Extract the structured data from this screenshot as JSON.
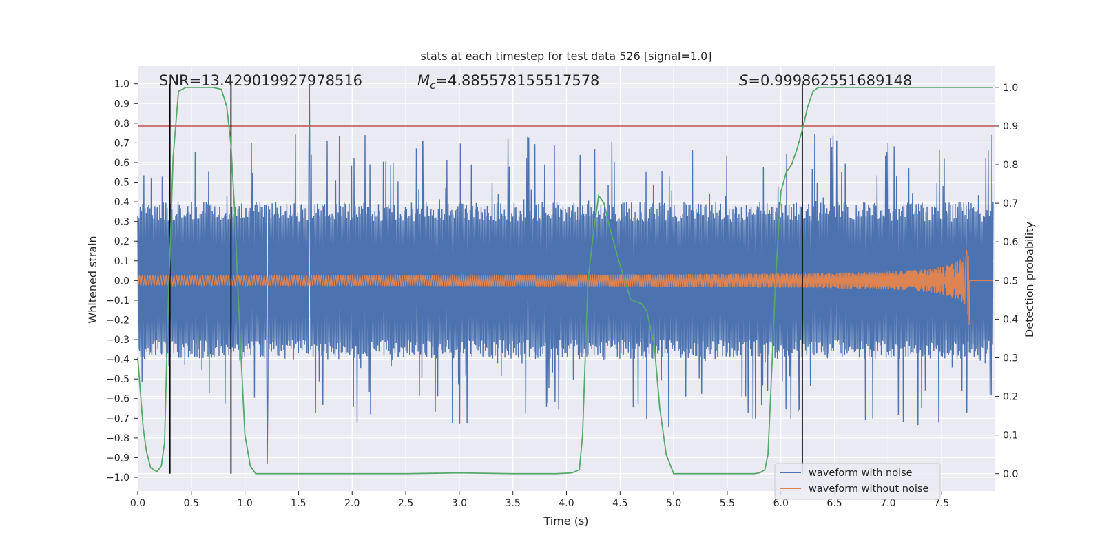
{
  "chart_data": {
    "type": "line",
    "title": "stats at each timestep for test data 526 [signal=1.0]",
    "xlabel": "Time (s)",
    "ylabel_left": "Whitened strain",
    "ylabel_right": "Detection probability",
    "xlim": [
      0.0,
      8.0
    ],
    "ylim_left": [
      -1.07,
      1.09
    ],
    "ylim_right": [
      -0.045,
      1.055
    ],
    "x_ticks": [
      "0.0",
      "0.5",
      "1.0",
      "1.5",
      "2.0",
      "2.5",
      "3.0",
      "3.5",
      "4.0",
      "4.5",
      "5.0",
      "5.5",
      "6.0",
      "6.5",
      "7.0",
      "7.5"
    ],
    "y_left_ticks": [
      "1.0",
      "0.9",
      "0.8",
      "0.7",
      "0.6",
      "0.5",
      "0.4",
      "0.3",
      "0.2",
      "0.1",
      "0.0",
      "−0.1",
      "−0.2",
      "−0.3",
      "−0.4",
      "−0.5",
      "−0.6",
      "−0.7",
      "−0.8",
      "−0.9",
      "−1.0"
    ],
    "y_right_ticks": [
      "1.0",
      "0.9",
      "0.8",
      "0.7",
      "0.6",
      "0.5",
      "0.4",
      "0.3",
      "0.2",
      "0.1",
      "0.0"
    ],
    "grid": true,
    "legend_position": "bottom-right",
    "annotations": {
      "snr": "SNR=13.429019927978516",
      "mc_symbol": "M",
      "mc_sub": "c",
      "mc_value": "=4.885578155517578",
      "s_symbol": "S",
      "s_value": "=0.999862551689148"
    },
    "threshold_right": 0.9,
    "vertical_lines_x": [
      0.3,
      0.87,
      6.2
    ],
    "series": [
      {
        "name": "waveform with noise",
        "color": "#4c72b0",
        "envelope": {
          "x_start": 0.0,
          "x_end": 7.98,
          "typical_amplitude": 0.4,
          "max_peak": 1.0,
          "max_peak_x": 1.6,
          "min_peak": -0.93
        }
      },
      {
        "name": "waveform without noise",
        "color": "#dd8452",
        "chirp": {
          "x_start": 0.0,
          "x_merger": 7.76,
          "x_end": 7.98,
          "amp_start": 0.025,
          "amp_at_7": 0.07,
          "amp_peak": 0.3
        }
      },
      {
        "name": "detection probability",
        "color": "#55a868",
        "axis": "right",
        "x": [
          0.0,
          0.05,
          0.08,
          0.12,
          0.18,
          0.22,
          0.25,
          0.28,
          0.33,
          0.38,
          0.45,
          0.55,
          0.7,
          0.78,
          0.83,
          0.87,
          0.9,
          0.95,
          1.0,
          1.05,
          1.1,
          1.3,
          2.0,
          2.5,
          3.0,
          3.5,
          3.9,
          4.05,
          4.12,
          4.15,
          4.2,
          4.25,
          4.3,
          4.35,
          4.4,
          4.5,
          4.6,
          4.7,
          4.75,
          4.82,
          4.87,
          4.93,
          5.0,
          5.3,
          5.6,
          5.75,
          5.8,
          5.85,
          5.88,
          5.92,
          5.95,
          6.0,
          6.05,
          6.1,
          6.15,
          6.2,
          6.25,
          6.3,
          6.35,
          6.5,
          7.0,
          7.5,
          7.98
        ],
        "y": [
          0.3,
          0.12,
          0.06,
          0.015,
          0.005,
          0.02,
          0.08,
          0.4,
          0.82,
          0.99,
          1.0,
          1.0,
          1.0,
          0.995,
          0.95,
          0.85,
          0.7,
          0.38,
          0.1,
          0.02,
          0.0,
          0.0,
          0.0,
          0.0,
          0.002,
          0.0,
          0.0,
          0.002,
          0.01,
          0.1,
          0.5,
          0.62,
          0.72,
          0.7,
          0.64,
          0.54,
          0.45,
          0.44,
          0.42,
          0.33,
          0.17,
          0.05,
          0.0,
          0.0,
          0.0,
          0.0,
          0.002,
          0.01,
          0.05,
          0.3,
          0.5,
          0.73,
          0.78,
          0.8,
          0.84,
          0.89,
          0.95,
          0.99,
          1.0,
          1.0,
          1.0,
          1.0,
          1.0
        ]
      }
    ]
  }
}
